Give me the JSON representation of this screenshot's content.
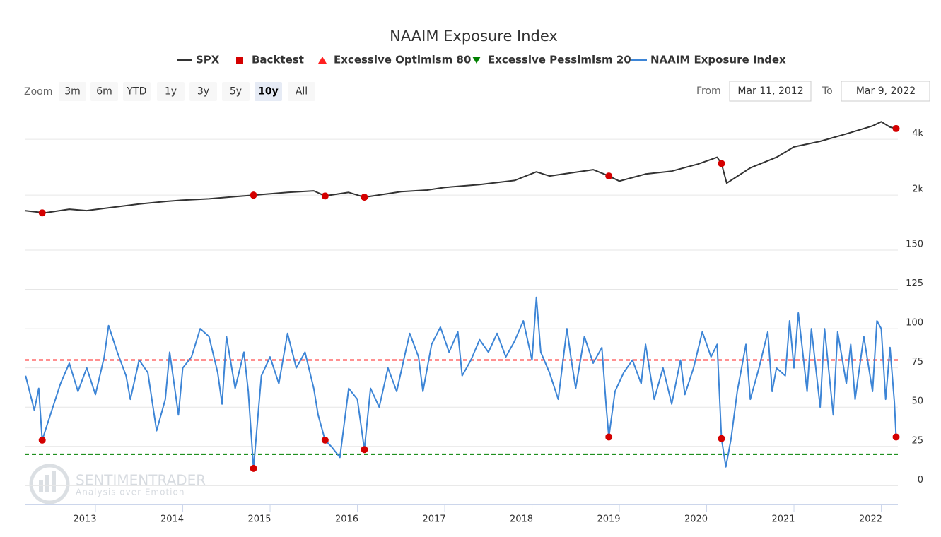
{
  "chart_data": {
    "type": "stock",
    "title": "NAAIM Exposure Index",
    "zoom": {
      "label": "Zoom",
      "buttons": [
        "3m",
        "6m",
        "YTD",
        "1y",
        "3y",
        "5y",
        "10y",
        "All"
      ],
      "selected": 6
    },
    "range": {
      "from_label": "From",
      "from": "Mar 11, 2012",
      "to_label": "To",
      "to": "Mar 9, 2022"
    },
    "xlim": [
      2012.19,
      2022.19
    ],
    "xticks": [
      2013,
      2014,
      2015,
      2016,
      2017,
      2018,
      2019,
      2020,
      2021,
      2022
    ],
    "panes": [
      {
        "log_scale": true,
        "ylim": [
          1020,
          5300
        ],
        "yticks": [
          {
            "value": 2000,
            "label": "2k"
          },
          {
            "value": 4000,
            "label": "4k"
          }
        ]
      },
      {
        "log_scale": false,
        "ylim": [
          -12,
          150
        ],
        "yticks": [
          0,
          25,
          50,
          75,
          100,
          125,
          150
        ]
      }
    ],
    "grid": true,
    "series": [
      {
        "name": "SPX",
        "color": "#333333",
        "pane": 0,
        "x": [
          2012.19,
          2012.42,
          2012.7,
          2012.9,
          2013.2,
          2013.5,
          2013.8,
          2014.0,
          2014.3,
          2014.6,
          2014.81,
          2015.2,
          2015.5,
          2015.63,
          2015.9,
          2016.08,
          2016.5,
          2016.8,
          2017.0,
          2017.4,
          2017.8,
          2018.05,
          2018.2,
          2018.7,
          2018.88,
          2019.0,
          2019.3,
          2019.6,
          2019.9,
          2020.12,
          2020.17,
          2020.23,
          2020.5,
          2020.8,
          2021.0,
          2021.3,
          2021.6,
          2021.9,
          2022.0,
          2022.1,
          2022.17
        ],
        "values": [
          1650,
          1605,
          1680,
          1650,
          1720,
          1790,
          1850,
          1880,
          1910,
          1965,
          2000,
          2070,
          2110,
          1980,
          2070,
          1950,
          2090,
          2130,
          2200,
          2280,
          2400,
          2670,
          2535,
          2745,
          2535,
          2380,
          2600,
          2695,
          2940,
          3200,
          2960,
          2320,
          2805,
          3200,
          3640,
          3900,
          4280,
          4720,
          4970,
          4650,
          4570
        ]
      },
      {
        "name": "Backtest",
        "color": "#d40000",
        "pane": 0,
        "x": [
          2012.39,
          2014.81,
          2015.63,
          2016.08,
          2018.88,
          2020.17,
          2022.17
        ],
        "values": [
          1605,
          2000,
          1980,
          1950,
          2535,
          2960,
          4570
        ],
        "naaim_values": [
          29,
          11,
          29,
          23,
          31,
          30,
          31
        ]
      },
      {
        "name": "Excessive Optimism 80",
        "color": "#ff2020",
        "pane": 1,
        "value": 80
      },
      {
        "name": "Excessive Pessimism 20",
        "color": "#008000",
        "pane": 1,
        "value": 20
      },
      {
        "name": "NAAIM Exposure Index",
        "color": "#3d85d6",
        "pane": 1,
        "x": [
          2012.2,
          2012.3,
          2012.35,
          2012.39,
          2012.5,
          2012.6,
          2012.7,
          2012.8,
          2012.9,
          2013.0,
          2013.1,
          2013.15,
          2013.25,
          2013.35,
          2013.4,
          2013.5,
          2013.6,
          2013.7,
          2013.8,
          2013.85,
          2013.95,
          2014.0,
          2014.1,
          2014.2,
          2014.3,
          2014.4,
          2014.45,
          2014.5,
          2014.6,
          2014.7,
          2014.75,
          2014.81,
          2014.9,
          2015.0,
          2015.1,
          2015.2,
          2015.3,
          2015.4,
          2015.5,
          2015.55,
          2015.63,
          2015.7,
          2015.8,
          2015.9,
          2016.0,
          2016.05,
          2016.08,
          2016.15,
          2016.25,
          2016.35,
          2016.45,
          2016.55,
          2016.6,
          2016.7,
          2016.75,
          2016.85,
          2016.95,
          2017.05,
          2017.15,
          2017.2,
          2017.3,
          2017.4,
          2017.5,
          2017.6,
          2017.7,
          2017.8,
          2017.9,
          2018.0,
          2018.05,
          2018.1,
          2018.2,
          2018.3,
          2018.4,
          2018.45,
          2018.5,
          2018.6,
          2018.7,
          2018.8,
          2018.85,
          2018.88,
          2018.95,
          2019.05,
          2019.15,
          2019.25,
          2019.3,
          2019.4,
          2019.5,
          2019.6,
          2019.7,
          2019.75,
          2019.85,
          2019.95,
          2020.05,
          2020.12,
          2020.17,
          2020.22,
          2020.28,
          2020.35,
          2020.45,
          2020.5,
          2020.6,
          2020.7,
          2020.75,
          2020.8,
          2020.9,
          2020.95,
          2021.0,
          2021.05,
          2021.1,
          2021.15,
          2021.2,
          2021.3,
          2021.35,
          2021.45,
          2021.5,
          2021.6,
          2021.65,
          2021.7,
          2021.8,
          2021.9,
          2021.95,
          2022.0,
          2022.05,
          2022.1,
          2022.15,
          2022.17
        ],
        "values": [
          70,
          48,
          62,
          29,
          48,
          65,
          78,
          60,
          75,
          58,
          82,
          102,
          85,
          70,
          55,
          80,
          72,
          35,
          55,
          85,
          45,
          75,
          82,
          100,
          95,
          72,
          52,
          95,
          62,
          85,
          60,
          11,
          70,
          82,
          65,
          97,
          75,
          85,
          62,
          45,
          29,
          25,
          18,
          62,
          55,
          35,
          23,
          62,
          50,
          75,
          60,
          85,
          97,
          82,
          60,
          90,
          101,
          85,
          98,
          70,
          80,
          93,
          85,
          97,
          82,
          92,
          105,
          80,
          120,
          85,
          72,
          55,
          100,
          80,
          62,
          95,
          78,
          88,
          50,
          31,
          60,
          72,
          80,
          65,
          90,
          55,
          75,
          52,
          80,
          58,
          75,
          98,
          82,
          90,
          30,
          12,
          30,
          60,
          90,
          55,
          75,
          98,
          60,
          75,
          70,
          105,
          75,
          110,
          85,
          60,
          100,
          50,
          100,
          45,
          98,
          65,
          90,
          55,
          95,
          60,
          105,
          100,
          55,
          88,
          53,
          31
        ]
      }
    ],
    "watermark": {
      "brand": "SENTIMENTRADER",
      "tagline": "Analysis over Emotion"
    }
  }
}
